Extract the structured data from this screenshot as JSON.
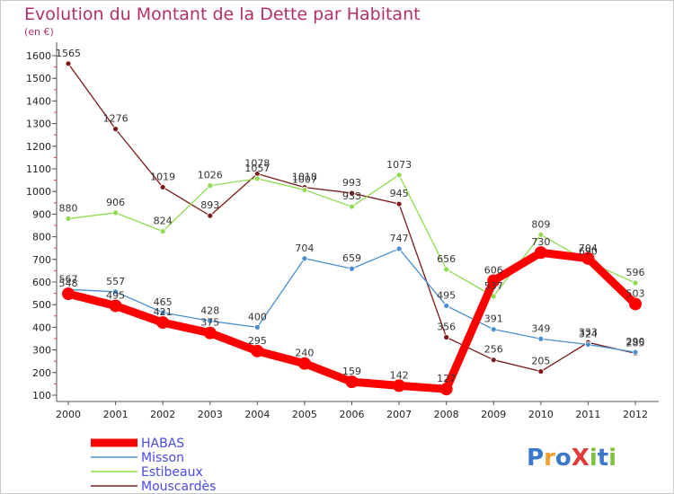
{
  "chart_data": {
    "type": "line",
    "title": "Evolution du Montant de la Dette par Habitant",
    "subtitle": "(en €)",
    "categories": [
      "2000",
      "2001",
      "2002",
      "2003",
      "2004",
      "2005",
      "2006",
      "2007",
      "2008",
      "2009",
      "2010",
      "2011",
      "2012"
    ],
    "ylim": [
      100,
      1600
    ],
    "yticks": [
      100,
      200,
      300,
      400,
      500,
      600,
      700,
      800,
      900,
      1000,
      1100,
      1200,
      1300,
      1400,
      1500,
      1600
    ],
    "grid": false,
    "legend_position": "bottom-left",
    "series": [
      {
        "name": "HABAS",
        "color": "#ff0000",
        "values": [
          548,
          495,
          421,
          375,
          295,
          240,
          159,
          142,
          127,
          606,
          730,
          704,
          503
        ]
      },
      {
        "name": "Misson",
        "color": "#4a8fd0",
        "values": [
          567,
          557,
          465,
          428,
          400,
          704,
          659,
          747,
          495,
          391,
          349,
          324,
          290
        ]
      },
      {
        "name": "Estibeaux",
        "color": "#8fdc50",
        "values": [
          880,
          906,
          824,
          1026,
          1057,
          1007,
          933,
          1073,
          656,
          537,
          809,
          690,
          596
        ]
      },
      {
        "name": "Mouscardès",
        "color": "#7a1a1a",
        "values": [
          1565,
          1276,
          1019,
          893,
          1078,
          1018,
          993,
          945,
          356,
          256,
          205,
          333,
          285
        ]
      }
    ]
  },
  "logo": {
    "text": "ProXiti",
    "colors": [
      "#3b78c9",
      "#f0a030",
      "#3b78c9",
      "#e23a3a",
      "#80c040",
      "#3b78c9",
      "#80c040"
    ]
  }
}
